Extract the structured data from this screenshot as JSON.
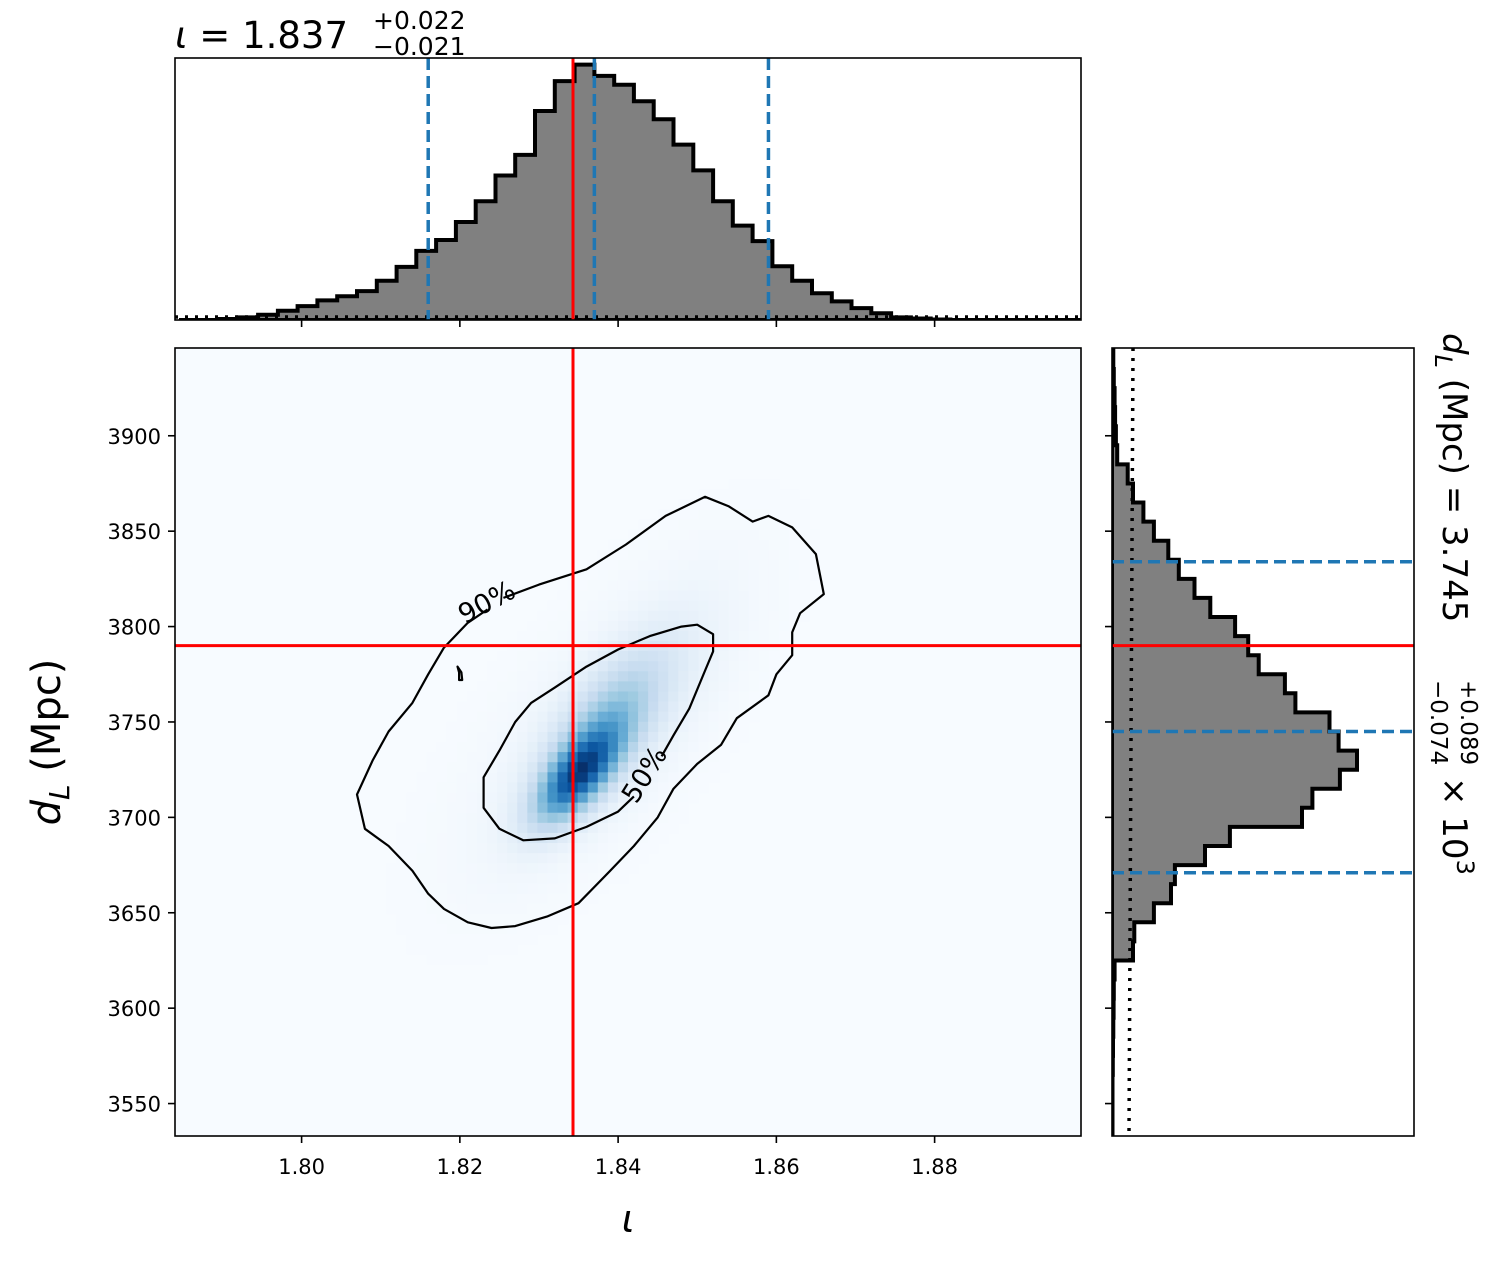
{
  "chart_data": {
    "type": "corner-2d-hist",
    "colors": {
      "truth": "#ff0000",
      "quantile": "#1f77b4",
      "hist_fill": "#808080",
      "hist_edge": "#000000",
      "density_cmap": "Blues"
    },
    "x_param": {
      "symbol": "ι",
      "median": "1.837",
      "err_plus": "+0.022",
      "err_minus": "−0.021",
      "xlim": [
        1.784,
        1.8985
      ],
      "ticks": [
        1.8,
        1.82,
        1.84,
        1.86,
        1.88
      ],
      "tick_labels": [
        "1.80",
        "1.82",
        "1.84",
        "1.86",
        "1.88"
      ],
      "quantiles": [
        1.816,
        1.837,
        1.859
      ],
      "truth": 1.8343,
      "hist_bins": [
        1.7845,
        1.787,
        1.7895,
        1.792,
        1.7945,
        1.797,
        1.7995,
        1.802,
        1.8045,
        1.807,
        1.8095,
        1.812,
        1.8145,
        1.817,
        1.8195,
        1.822,
        1.8245,
        1.827,
        1.8295,
        1.832,
        1.8345,
        1.837,
        1.8395,
        1.842,
        1.8445,
        1.847,
        1.8495,
        1.852,
        1.8545,
        1.857,
        1.8595,
        1.862,
        1.8645,
        1.867,
        1.8695,
        1.872,
        1.8745,
        1.877,
        1.8795,
        1.882,
        1.8845,
        1.887,
        1.8895,
        1.892,
        1.8945,
        1.897,
        1.8985
      ],
      "hist_density": [
        0.0,
        0.0,
        0.004,
        0.01,
        0.02,
        0.036,
        0.054,
        0.076,
        0.092,
        0.112,
        0.152,
        0.206,
        0.268,
        0.31,
        0.38,
        0.46,
        0.56,
        0.64,
        0.81,
        0.926,
        0.99,
        0.946,
        0.912,
        0.848,
        0.778,
        0.68,
        0.58,
        0.46,
        0.366,
        0.306,
        0.208,
        0.152,
        0.104,
        0.072,
        0.046,
        0.026,
        0.01,
        0.006,
        0.002,
        0.0,
        0.0,
        0.0,
        0.0,
        0.0,
        0.0,
        0.0
      ]
    },
    "y_param": {
      "symbol": "d",
      "subscript": "L",
      "unit": "(Mpc)",
      "median": "3.745",
      "err_plus": "+0.089",
      "err_minus": "−0.074",
      "multiplier": "× 10",
      "exponent": "3",
      "ylim": [
        3533,
        3946
      ],
      "ticks": [
        3550,
        3600,
        3650,
        3700,
        3750,
        3800,
        3850,
        3900
      ],
      "tick_labels": [
        "3550",
        "3600",
        "3650",
        "3700",
        "3750",
        "3800",
        "3850",
        "3900"
      ],
      "quantiles": [
        3671,
        3745,
        3834
      ],
      "truth": 3790,
      "hist_bins": [
        3945,
        3935,
        3925,
        3915,
        3905,
        3895,
        3885,
        3875,
        3865,
        3855,
        3845,
        3835,
        3825,
        3815,
        3805,
        3795,
        3785,
        3775,
        3765,
        3755,
        3745,
        3735,
        3725,
        3715,
        3705,
        3695,
        3685,
        3675,
        3665,
        3655,
        3645,
        3635,
        3625,
        3615,
        3605,
        3595,
        3585,
        3575,
        3565,
        3555,
        3545,
        3533
      ],
      "hist_density": [
        0.005,
        0.007,
        0.01,
        0.012,
        0.015,
        0.02,
        0.06,
        0.08,
        0.12,
        0.16,
        0.215,
        0.255,
        0.315,
        0.375,
        0.47,
        0.52,
        0.56,
        0.66,
        0.7,
        0.83,
        0.865,
        0.935,
        0.87,
        0.765,
        0.725,
        0.45,
        0.355,
        0.24,
        0.225,
        0.16,
        0.085,
        0.08,
        0.01,
        0.007,
        0.006,
        0.005,
        0.004,
        0.003,
        0.002,
        0.002,
        0.002
      ]
    },
    "density_2d": {
      "blobs": [
        {
          "x": 1.835,
          "y": 3722,
          "sx": 0.0035,
          "sy": 16,
          "rho": 0.65,
          "w": 1.0
        },
        {
          "x": 1.838,
          "y": 3745,
          "sx": 0.005,
          "sy": 26,
          "rho": 0.7,
          "w": 0.45
        },
        {
          "x": 1.84,
          "y": 3752,
          "sx": 0.0085,
          "sy": 42,
          "rho": 0.72,
          "w": 0.16
        },
        {
          "x": 1.837,
          "y": 3748,
          "sx": 0.013,
          "sy": 60,
          "rho": 0.7,
          "w": 0.04
        }
      ]
    },
    "contours": [
      {
        "label": "90%",
        "label_x": 1.8235,
        "label_y": 3812,
        "label_angle": -28,
        "points": [
          [
            1.8255,
            3815
          ],
          [
            1.83,
            3822
          ],
          [
            1.836,
            3830
          ],
          [
            1.841,
            3843
          ],
          [
            1.846,
            3858
          ],
          [
            1.851,
            3868
          ],
          [
            1.854,
            3863
          ],
          [
            1.857,
            3855
          ],
          [
            1.859,
            3858
          ],
          [
            1.862,
            3852
          ],
          [
            1.865,
            3838
          ],
          [
            1.866,
            3817
          ],
          [
            1.863,
            3807
          ],
          [
            1.862,
            3797
          ],
          [
            1.862,
            3785
          ],
          [
            1.86,
            3775
          ],
          [
            1.859,
            3764
          ],
          [
            1.855,
            3752
          ],
          [
            1.853,
            3738
          ],
          [
            1.85,
            3728
          ],
          [
            1.847,
            3715
          ],
          [
            1.845,
            3700
          ],
          [
            1.842,
            3685
          ],
          [
            1.839,
            3672
          ],
          [
            1.835,
            3655
          ],
          [
            1.831,
            3648
          ],
          [
            1.827,
            3643
          ],
          [
            1.824,
            3642
          ],
          [
            1.821,
            3645
          ],
          [
            1.818,
            3652
          ],
          [
            1.816,
            3660
          ],
          [
            1.814,
            3672
          ],
          [
            1.811,
            3685
          ],
          [
            1.808,
            3694
          ],
          [
            1.807,
            3712
          ],
          [
            1.809,
            3730
          ],
          [
            1.811,
            3745
          ],
          [
            1.814,
            3760
          ],
          [
            1.816,
            3775
          ],
          [
            1.818,
            3789
          ],
          [
            1.821,
            3802
          ],
          [
            1.8235,
            3809
          ]
        ]
      },
      {
        "label": "",
        "points": [
          [
            1.8197,
            3779
          ],
          [
            1.8202,
            3776
          ],
          [
            1.8203,
            3772
          ],
          [
            1.8199,
            3772
          ],
          [
            1.8199,
            3776
          ],
          [
            1.8197,
            3779
          ]
        ]
      },
      {
        "label": "50%",
        "label_x": 1.8435,
        "label_y": 3722,
        "label_angle": -58,
        "points": [
          [
            1.8455,
            3732
          ],
          [
            1.847,
            3743
          ],
          [
            1.849,
            3757
          ],
          [
            1.851,
            3777
          ],
          [
            1.852,
            3787
          ],
          [
            1.852,
            3796
          ],
          [
            1.85,
            3801
          ],
          [
            1.848,
            3800
          ],
          [
            1.844,
            3795
          ],
          [
            1.84,
            3788
          ],
          [
            1.836,
            3779
          ],
          [
            1.832,
            3768
          ],
          [
            1.829,
            3760
          ],
          [
            1.827,
            3750
          ],
          [
            1.825,
            3735
          ],
          [
            1.823,
            3721
          ],
          [
            1.823,
            3705
          ],
          [
            1.825,
            3694
          ],
          [
            1.828,
            3688
          ],
          [
            1.832,
            3689
          ],
          [
            1.836,
            3695
          ],
          [
            1.84,
            3703
          ],
          [
            1.842,
            3711
          ]
        ]
      }
    ]
  }
}
